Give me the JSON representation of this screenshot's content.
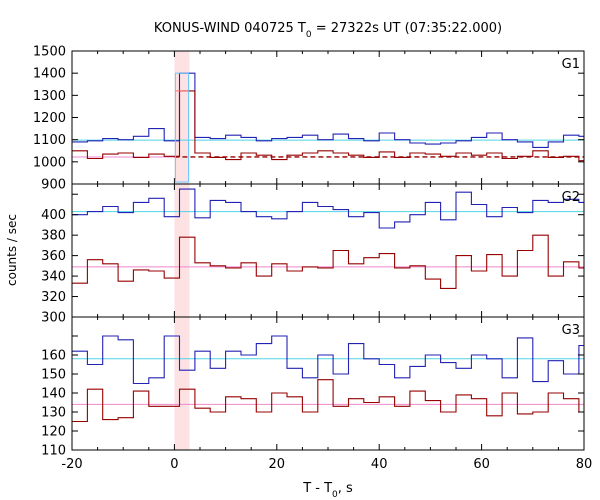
{
  "chart_data": {
    "type": "line",
    "title_main": "KONUS-WIND 040725 T",
    "title_sub": "0",
    "title_rest": " = 27322s UT (07:35:22.000)",
    "xlabel_main": "T - T",
    "xlabel_sub": "0",
    "xlabel_rest": ", s",
    "ylabel": "counts / sec",
    "xlim": [
      -20,
      80
    ],
    "x_ticks": [
      -20,
      0,
      20,
      40,
      60,
      80
    ],
    "shaded_interval": [
      0,
      2.944
    ],
    "colors": {
      "series_a": "#2222b4",
      "series_b": "#960000",
      "fit_a": "#50d2e6",
      "fit_b": "#ee88cc",
      "shade": "#fde2e4",
      "highres": "#ff6e6e"
    },
    "panels": [
      {
        "label": "G1",
        "ylim": [
          900,
          1500
        ],
        "yticks": [
          900,
          1000,
          1100,
          1200,
          1300,
          1400,
          1500
        ],
        "bin_edges": [
          -20,
          -17,
          -14,
          -11,
          -8,
          -5,
          -2,
          1,
          4,
          7,
          10,
          13,
          16,
          19,
          22,
          25,
          28,
          31,
          34,
          37,
          40,
          43,
          46,
          49,
          52,
          55,
          58,
          61,
          64,
          67,
          70,
          73,
          76,
          79,
          80
        ],
        "series": [
          {
            "values": [
              1090,
              1095,
              1105,
              1100,
              1115,
              1150,
              1095,
              1400,
              1110,
              1105,
              1120,
              1110,
              1095,
              1105,
              1110,
              1120,
              1100,
              1125,
              1105,
              1095,
              1130,
              1100,
              1085,
              1080,
              1085,
              1095,
              1110,
              1130,
              1100,
              1090,
              1065,
              1090,
              1120,
              1115
            ]
          },
          {
            "values": [
              1050,
              1015,
              1035,
              1040,
              1020,
              1035,
              1025,
              1320,
              1040,
              1020,
              1010,
              1040,
              1030,
              1010,
              1030,
              1040,
              1050,
              1040,
              1030,
              1020,
              1045,
              1020,
              1040,
              1035,
              1025,
              1040,
              1030,
              1040,
              1015,
              1025,
              1050,
              1020,
              1025,
              1005
            ]
          }
        ],
        "fits": [
          1098,
          1022
        ],
        "fit_b_dashed_from_x": 0
      },
      {
        "label": "G2",
        "ylim": [
          300,
          430
        ],
        "yticks": [
          300,
          320,
          340,
          360,
          380,
          400,
          420
        ],
        "bin_edges": [
          -20,
          -17,
          -14,
          -11,
          -8,
          -5,
          -2,
          1,
          4,
          7,
          10,
          13,
          16,
          19,
          22,
          25,
          28,
          31,
          34,
          37,
          40,
          43,
          46,
          49,
          52,
          55,
          58,
          61,
          64,
          67,
          70,
          73,
          76,
          79,
          80
        ],
        "series": [
          {
            "values": [
              400,
              403,
              408,
              402,
              412,
              416,
              398,
              425,
              397,
              414,
              412,
              403,
              398,
              396,
              403,
              412,
              408,
              405,
              398,
              402,
              387,
              393,
              400,
              412,
              395,
              422,
              410,
              398,
              407,
              402,
              414,
              412,
              415,
              412
            ]
          },
          {
            "values": [
              333,
              356,
              352,
              335,
              346,
              345,
              338,
              378,
              353,
              350,
              348,
              353,
              340,
              352,
              345,
              349,
              348,
              365,
              352,
              358,
              362,
              348,
              350,
              337,
              328,
              360,
              345,
              361,
              340,
              365,
              380,
              340,
              354,
              348
            ]
          }
        ],
        "fits": [
          403,
          349
        ]
      },
      {
        "label": "G3",
        "ylim": [
          110,
          180
        ],
        "yticks": [
          110,
          120,
          130,
          140,
          150,
          160,
          170
        ],
        "bin_edges": [
          -20,
          -17,
          -14,
          -11,
          -8,
          -5,
          -2,
          1,
          4,
          7,
          10,
          13,
          16,
          19,
          22,
          25,
          28,
          31,
          34,
          37,
          40,
          43,
          46,
          49,
          52,
          55,
          58,
          61,
          64,
          67,
          70,
          73,
          76,
          79,
          80
        ],
        "series": [
          {
            "values": [
              162,
              155,
              170,
              168,
              145,
              148,
              170,
              152,
              162,
              153,
              162,
              160,
              166,
              170,
              153,
              148,
              160,
              150,
              166,
              158,
              155,
              148,
              154,
              160,
              156,
              153,
              160,
              158,
              148,
              169,
              146,
              157,
              150,
              165
            ]
          },
          {
            "values": [
              125,
              142,
              126,
              127,
              141,
              133,
              133,
              142,
              132,
              130,
              138,
              137,
              130,
              140,
              138,
              130,
              147,
              133,
              137,
              135,
              138,
              133,
              141,
              136,
              130,
              139,
              137,
              128,
              140,
              129,
              130,
              140,
              137,
              130
            ]
          }
        ],
        "fits": [
          158,
          134
        ]
      }
    ]
  }
}
